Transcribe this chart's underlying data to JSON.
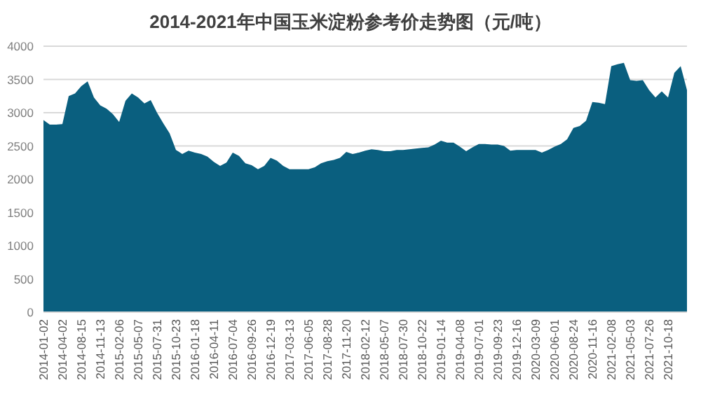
{
  "chart_data": {
    "type": "area",
    "title": "2014-2021年中国玉米淀粉参考价走势图（元/吨）",
    "categories": [
      "2014-01-02",
      null,
      null,
      "2014-04-02",
      null,
      null,
      "2014-08-15",
      null,
      null,
      "2014-11-13",
      null,
      null,
      "2015-02-06",
      null,
      null,
      "2015-05-07",
      null,
      null,
      "2015-07-31",
      null,
      null,
      "2015-10-23",
      null,
      null,
      "2016-01-18",
      null,
      null,
      "2016-04-11",
      null,
      null,
      "2016-07-04",
      null,
      null,
      "2016-09-26",
      null,
      null,
      "2016-12-19",
      null,
      null,
      "2017-03-13",
      null,
      null,
      "2017-06-05",
      null,
      null,
      "2017-08-28",
      null,
      null,
      "2017-11-20",
      null,
      null,
      "2018-02-12",
      null,
      null,
      "2018-05-07",
      null,
      null,
      "2018-07-30",
      null,
      null,
      "2018-10-22",
      null,
      null,
      "2019-01-14",
      null,
      null,
      "2019-04-08",
      null,
      null,
      "2019-07-01",
      null,
      null,
      "2019-09-23",
      null,
      null,
      "2019-12-16",
      null,
      null,
      "2020-03-09",
      null,
      null,
      "2020-06-01",
      null,
      null,
      "2020-08-24",
      null,
      null,
      "2020-11-16",
      null,
      null,
      "2021-02-08",
      null,
      null,
      "2021-05-03",
      null,
      null,
      "2021-07-26",
      null,
      null,
      "2021-10-18",
      null,
      null,
      null
    ],
    "values": [
      2890,
      2820,
      2820,
      2830,
      3250,
      3290,
      3400,
      3470,
      3230,
      3110,
      3060,
      2980,
      2860,
      3180,
      3290,
      3230,
      3140,
      3190,
      3000,
      2840,
      2690,
      2440,
      2380,
      2430,
      2400,
      2380,
      2340,
      2260,
      2200,
      2250,
      2400,
      2350,
      2240,
      2210,
      2150,
      2200,
      2320,
      2280,
      2200,
      2150,
      2150,
      2150,
      2150,
      2180,
      2240,
      2270,
      2290,
      2320,
      2410,
      2380,
      2400,
      2430,
      2450,
      2440,
      2420,
      2420,
      2440,
      2440,
      2450,
      2460,
      2470,
      2480,
      2520,
      2580,
      2550,
      2550,
      2490,
      2420,
      2480,
      2530,
      2530,
      2520,
      2520,
      2500,
      2430,
      2440,
      2440,
      2440,
      2440,
      2400,
      2440,
      2490,
      2530,
      2600,
      2770,
      2800,
      2880,
      3160,
      3150,
      3130,
      3700,
      3730,
      3750,
      3490,
      3480,
      3490,
      3340,
      3230,
      3320,
      3230,
      3600,
      3700,
      3340
    ],
    "color": "#0a5f7f",
    "ylim": [
      0,
      4000
    ],
    "yticks": [
      0,
      500,
      1000,
      1500,
      2000,
      2500,
      3000,
      3500,
      4000
    ],
    "grid": "y"
  }
}
